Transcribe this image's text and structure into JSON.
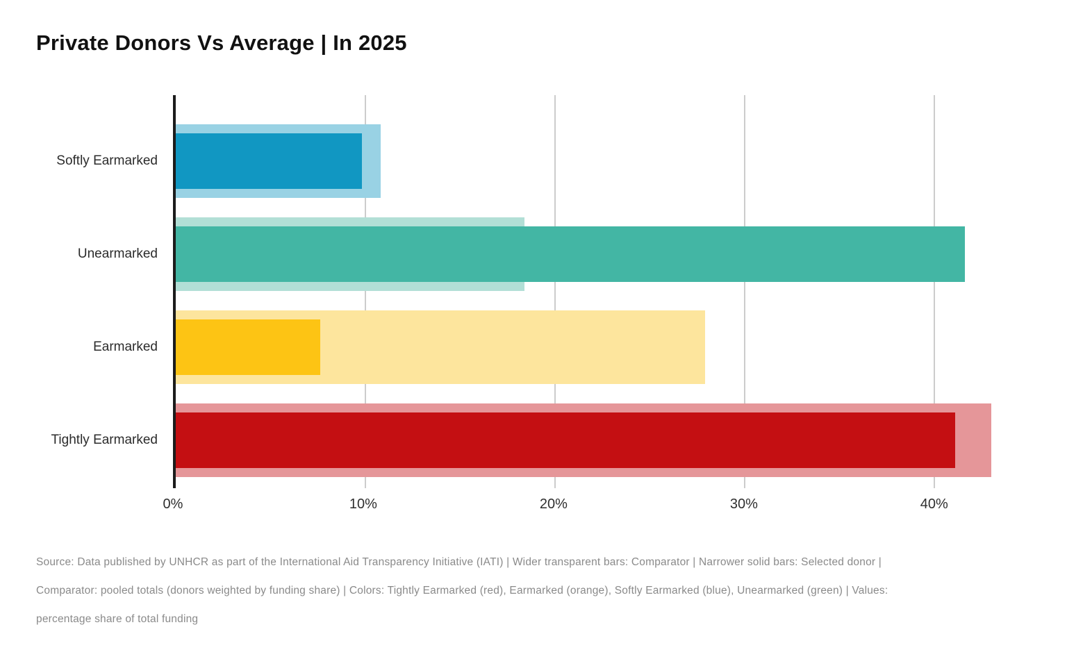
{
  "title": "Private Donors Vs Average | In 2025",
  "chart_data": {
    "type": "bar",
    "orientation": "horizontal",
    "title": "Private Donors Vs Average | In 2025",
    "categories": [
      "Softly Earmarked",
      "Unearmarked",
      "Earmarked",
      "Tightly Earmarked"
    ],
    "series": [
      {
        "name": "Selected donor",
        "style": "narrow-solid",
        "values": [
          9.8,
          41.6,
          7.6,
          41.1
        ]
      },
      {
        "name": "Comparator",
        "style": "wide-transparent",
        "values": [
          10.8,
          18.4,
          27.9,
          43.0
        ]
      }
    ],
    "category_colors": [
      {
        "solid": "#1197C2",
        "light": "#99D2E4"
      },
      {
        "solid": "#43B6A4",
        "light": "#B2DFD6"
      },
      {
        "solid": "#FDC414",
        "light": "#FDE59D"
      },
      {
        "solid": "#C40F12",
        "light": "#E59699"
      }
    ],
    "x_ticks": [
      {
        "value": 0,
        "label": "0%"
      },
      {
        "value": 10,
        "label": "10%"
      },
      {
        "value": 20,
        "label": "20%"
      },
      {
        "value": 30,
        "label": "30%"
      },
      {
        "value": 40,
        "label": "40%"
      }
    ],
    "xlim": [
      0,
      45.3
    ],
    "grid": true,
    "ylabel": "",
    "xlabel": "",
    "values_unit": "percentage share of total funding"
  },
  "footer": {
    "lines": [
      "Source: Data published by UNHCR as part of the International Aid Transparency Initiative (IATI) | Wider transparent bars: Comparator | Narrower solid bars: Selected donor |",
      "Comparator: pooled totals (donors weighted by funding share) | Colors: Tightly Earmarked (red), Earmarked (orange), Softly Earmarked (blue), Unearmarked (green) | Values:",
      "percentage share of total funding"
    ]
  }
}
